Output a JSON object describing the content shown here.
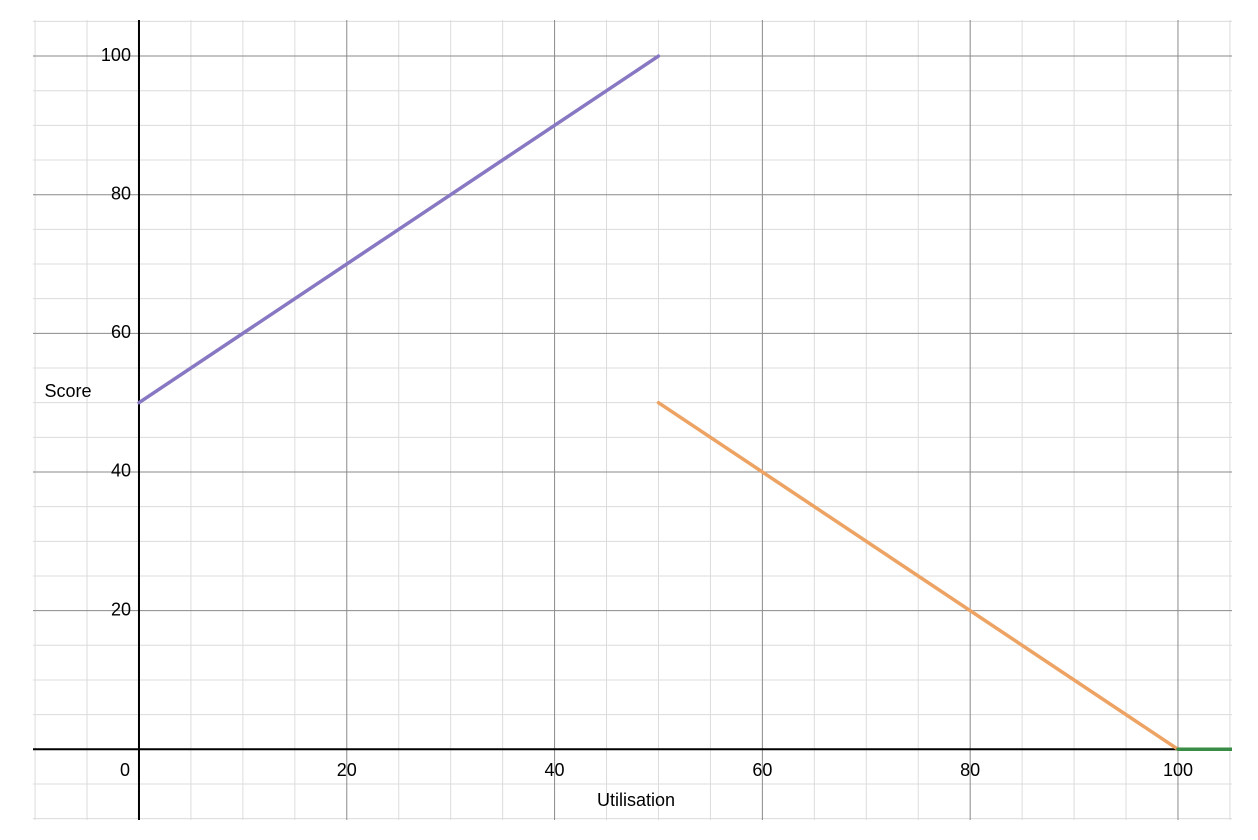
{
  "chart_data": {
    "type": "line",
    "xlabel": "Utilisation",
    "ylabel": "Score",
    "xlim": [
      -10.2,
      105.2
    ],
    "ylim": [
      -10.2,
      105.2
    ],
    "xticks": [
      0,
      20,
      40,
      60,
      80,
      100
    ],
    "yticks": [
      20,
      40,
      60,
      80,
      100
    ],
    "xminorticks": [
      -10,
      -5,
      5,
      10,
      15,
      25,
      30,
      35,
      45,
      50,
      55,
      65,
      70,
      75,
      85,
      90,
      95,
      105
    ],
    "yminorticks": [
      -10,
      -5,
      5,
      10,
      15,
      25,
      30,
      35,
      45,
      50,
      55,
      65,
      70,
      75,
      85,
      90,
      95,
      105
    ],
    "grid": true,
    "series": [
      {
        "color": "#8878c3",
        "x": [
          0,
          50
        ],
        "values": [
          50,
          100
        ]
      },
      {
        "color": "#eda363",
        "x": [
          50,
          100
        ],
        "values": [
          50,
          0
        ]
      },
      {
        "color": "#388c46",
        "x": [
          100,
          105.2
        ],
        "values": [
          0,
          0
        ]
      }
    ]
  }
}
